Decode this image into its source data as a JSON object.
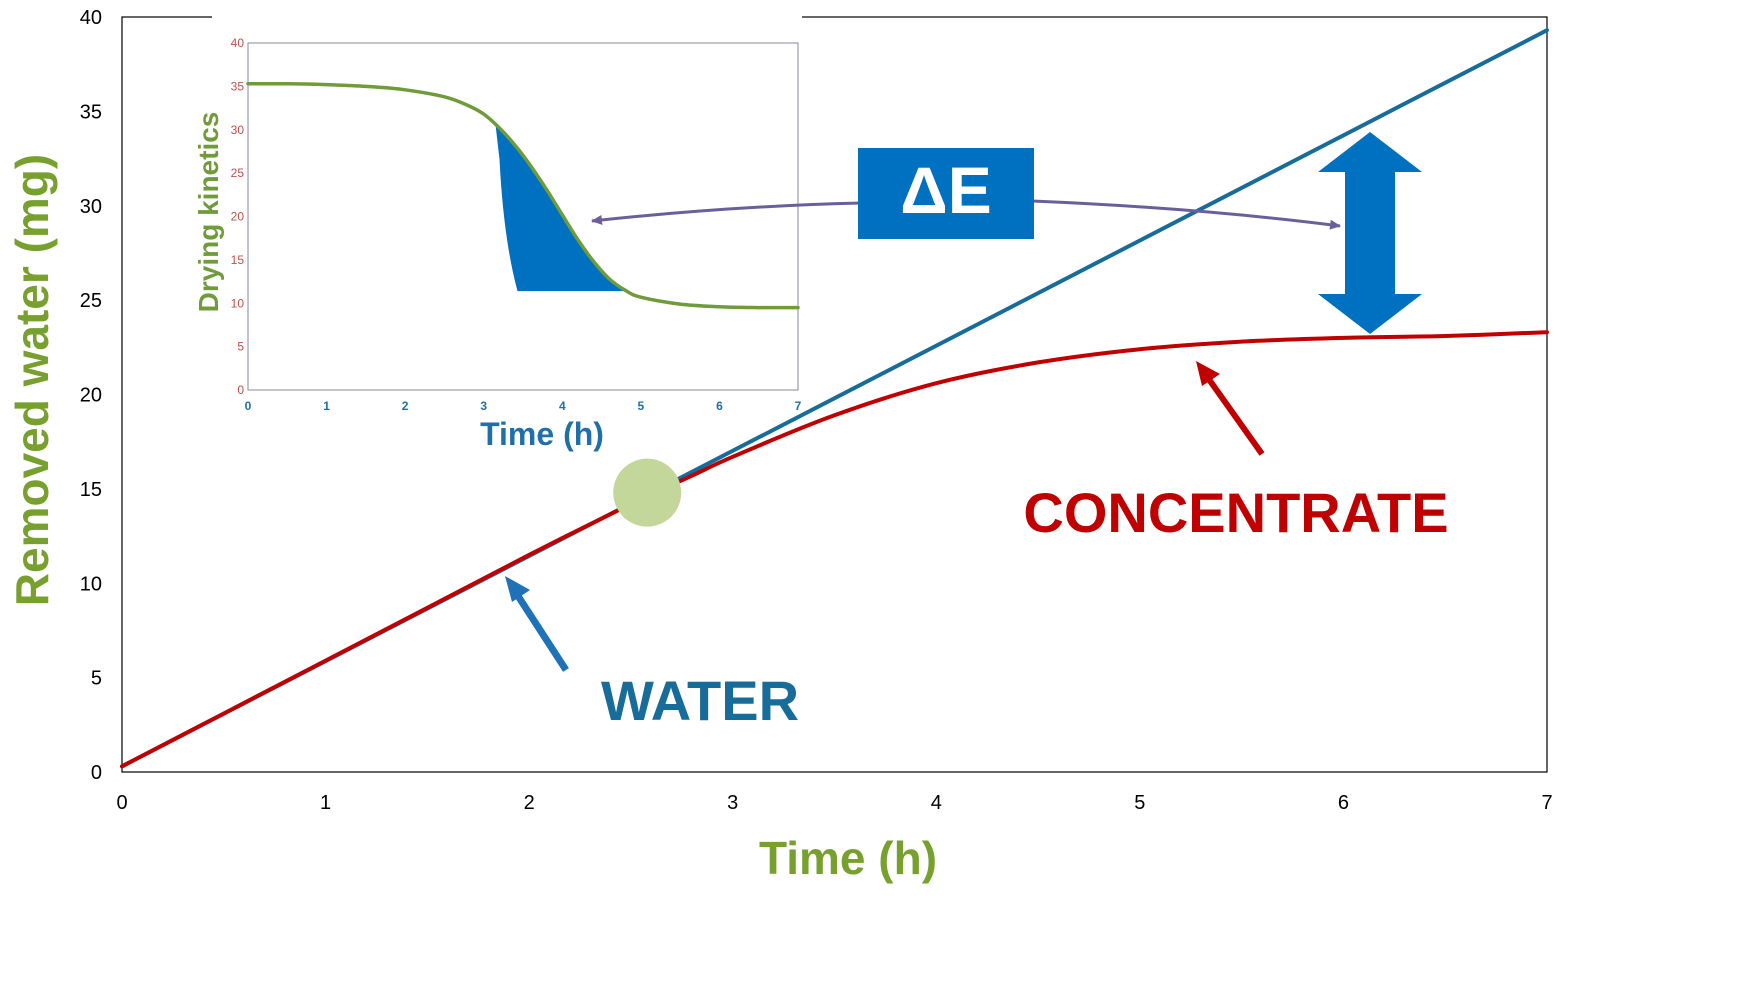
{
  "chart_data": [
    {
      "type": "line",
      "xlabel": "Time (h)",
      "ylabel": "Removed water (mg)",
      "xlim": [
        0,
        7
      ],
      "ylim": [
        0,
        40
      ],
      "xticks": [
        "0",
        "1",
        "2",
        "3",
        "4",
        "5",
        "6",
        "7"
      ],
      "yticks": [
        "0",
        "5",
        "10",
        "15",
        "20",
        "25",
        "30",
        "35",
        "40"
      ],
      "grid": false,
      "series": [
        {
          "name": "WATER",
          "color": "#176c9a",
          "x": [
            0,
            7
          ],
          "y": [
            0.3,
            39.3
          ]
        },
        {
          "name": "CONCENTRATE",
          "color": "#c00000",
          "x": [
            0,
            0.5,
            1,
            1.5,
            2,
            2.5,
            2.8,
            3,
            3.5,
            4,
            4.5,
            5,
            5.5,
            6,
            6.5,
            7
          ],
          "y": [
            0.3,
            3.1,
            5.9,
            8.7,
            11.5,
            14.2,
            15.7,
            16.7,
            18.9,
            20.6,
            21.7,
            22.4,
            22.8,
            23.0,
            23.1,
            23.3
          ]
        }
      ],
      "annotations": {
        "water_label": "WATER",
        "concentrate_label": "CONCENTRATE",
        "delta_label": "ΔE",
        "divergence_point": {
          "x": 2.58,
          "y": 14.8,
          "color": "#c4d79b"
        }
      },
      "colors": {
        "axis_title": "#77a02e",
        "water_arrow": "#1f72b8",
        "concentrate_arrow": "#c00000",
        "delta_box": "#0070c0",
        "connector": "#6a5f9a"
      }
    },
    {
      "type": "line",
      "xlabel": "Time (h)",
      "ylabel": "Drying kinetics",
      "xlim": [
        0,
        7
      ],
      "ylim": [
        0,
        40
      ],
      "xticks": [
        "0",
        "1",
        "2",
        "3",
        "4",
        "5",
        "6",
        "7"
      ],
      "yticks": [
        "0",
        "5",
        "10",
        "15",
        "20",
        "25",
        "30",
        "35",
        "40"
      ],
      "tick_colors": {
        "x": "#1f6fa8",
        "y": "#c0504d"
      },
      "series": [
        {
          "name": "",
          "color": "#6f9b3a",
          "x": [
            0,
            0.5,
            1,
            1.5,
            2,
            2.5,
            2.8,
            3,
            3.2,
            3.4,
            3.6,
            3.8,
            4,
            4.2,
            4.4,
            4.6,
            4.8,
            5,
            5.5,
            6,
            6.5,
            7
          ],
          "y": [
            35.3,
            35.3,
            35.2,
            35.0,
            34.6,
            33.8,
            32.8,
            31.8,
            30.2,
            28.2,
            25.8,
            23.1,
            20.2,
            17.3,
            14.8,
            12.8,
            11.5,
            10.7,
            9.9,
            9.6,
            9.5,
            9.5
          ]
        }
      ],
      "shaded_region": {
        "color": "#0070c0",
        "floor_y": 11.4,
        "x_start": 3.15,
        "x_end": 4.8
      }
    }
  ]
}
